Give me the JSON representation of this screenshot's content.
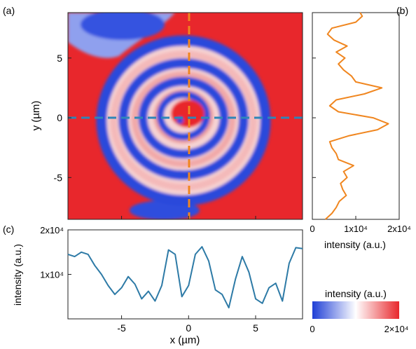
{
  "panel_labels": {
    "a": "(a)",
    "b": "(b)",
    "c": "(c)"
  },
  "colors": {
    "map_blue": "#1f3fd6",
    "map_red": "#e8272c",
    "horizontal_cut": "#2d7aa6",
    "vertical_cut": "#f0861f",
    "cut_line_x": "#2e86b8",
    "cut_line_y": "#f0861f"
  },
  "colorbar": {
    "title": "intensity (a.u.)",
    "min_label": "0",
    "max_label": "2×10⁴",
    "min": 0,
    "max": 20000
  },
  "chart_data": [
    {
      "id": "a",
      "type": "heatmap",
      "description_of_structure": "concentric elliptical fringes, blue rings on red background",
      "xlim": [
        -9,
        8.5
      ],
      "ylim": [
        -8.5,
        8.8
      ],
      "xticks": [
        -5,
        0,
        5
      ],
      "yticks": [
        -5,
        0,
        5
      ],
      "xtick_labels": [
        "-5",
        "0",
        "5"
      ],
      "ytick_labels": [
        "-5",
        "0",
        "5"
      ],
      "ylabel": "y (µm)",
      "cuts": {
        "horizontal_y": 0,
        "vertical_x": 0
      },
      "colormap": [
        "#1f3fd6",
        "#ffffff",
        "#e8272c"
      ]
    },
    {
      "id": "b",
      "type": "line",
      "orientation": "vertical",
      "xlabel": "intensity (a.u.)",
      "xlim": [
        0,
        20000
      ],
      "xticks": [
        0,
        10000,
        20000
      ],
      "xtick_labels": [
        "0",
        "1x10⁴",
        "2x10⁴"
      ],
      "ylim": [
        -8.5,
        8.8
      ],
      "y": [
        -8.5,
        -8.0,
        -7.5,
        -7.0,
        -6.5,
        -6.0,
        -5.5,
        -5.0,
        -4.5,
        -4.0,
        -3.5,
        -3.0,
        -2.5,
        -2.0,
        -1.5,
        -1.0,
        -0.5,
        0.0,
        0.5,
        1.0,
        1.5,
        2.0,
        2.5,
        3.0,
        3.5,
        4.0,
        4.5,
        5.0,
        5.5,
        6.0,
        6.5,
        7.0,
        7.5,
        8.0,
        8.5,
        8.8
      ],
      "values": [
        3000,
        4500,
        5500,
        6200,
        7800,
        7000,
        6500,
        8000,
        7200,
        9500,
        6000,
        5500,
        4500,
        4000,
        8500,
        15000,
        17500,
        14000,
        6000,
        4000,
        5500,
        12000,
        16000,
        10000,
        9000,
        7200,
        6000,
        7500,
        5500,
        8000,
        5000,
        3500,
        4500,
        10000,
        11500,
        11000
      ]
    },
    {
      "id": "c",
      "type": "line",
      "xlabel": "x (µm)",
      "ylabel": "intensity (a.u.)",
      "xlim": [
        -9,
        8.5
      ],
      "ylim": [
        0,
        20000
      ],
      "xticks": [
        -5,
        0,
        5
      ],
      "xtick_labels": [
        "-5",
        "0",
        "5"
      ],
      "yticks": [
        10000,
        20000
      ],
      "ytick_labels": [
        "1x10⁴",
        "2x10⁴"
      ],
      "x": [
        -9,
        -8.5,
        -8,
        -7.5,
        -7,
        -6.5,
        -6,
        -5.5,
        -5,
        -4.5,
        -4,
        -3.5,
        -3,
        -2.5,
        -2,
        -1.5,
        -1,
        -0.5,
        0,
        0.5,
        1,
        1.5,
        2,
        2.5,
        3,
        3.5,
        4,
        4.5,
        5,
        5.5,
        6,
        6.5,
        7,
        7.5,
        8,
        8.5
      ],
      "values": [
        14500,
        14000,
        15000,
        14500,
        12000,
        10000,
        7500,
        5500,
        7000,
        9500,
        7800,
        4500,
        6200,
        4000,
        7500,
        15500,
        14500,
        5000,
        7500,
        14500,
        16200,
        13000,
        6500,
        5500,
        2500,
        9000,
        14000,
        10500,
        4500,
        3500,
        7000,
        8000,
        4000,
        12500,
        16000,
        15800
      ]
    }
  ]
}
